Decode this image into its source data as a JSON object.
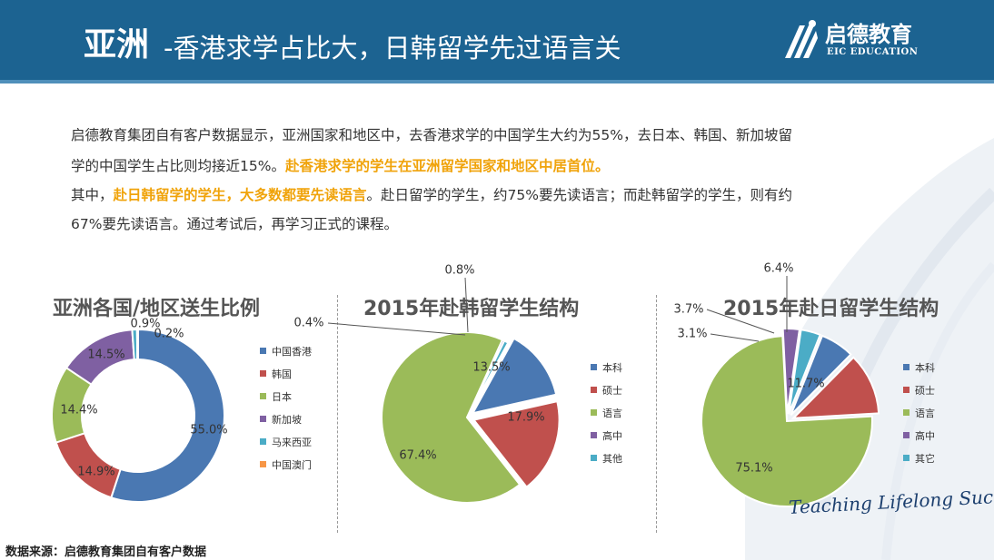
{
  "header": {
    "title_main": "亚洲",
    "title_sub": "-香港求学占比大，日韩留学先过语言关",
    "logo_cn": "启德教育",
    "logo_en": "EIC EDUCATION"
  },
  "intro": {
    "line1": "启德教育集团自有客户数据显示，亚洲国家和地区中，去香港求学的中国学生大约为55%，去日本、韩国、新加坡留",
    "line2_plain": "学的中国学生占比则均接近15%。",
    "line2_highlight": "赴香港求学的学生在亚洲留学国家和地区中居首位。",
    "line3_plain_a": "其中，",
    "line3_highlight": "赴日韩留学的学生，大多数都要先读语言",
    "line3_plain_b": "。赴日留学的学生，约75%要先读语言；而赴韩留学的学生，则有约",
    "line4": "67%要先读语言。通过考试后，再学习正式的课程。"
  },
  "chart_data": [
    {
      "type": "pie",
      "style": "donut",
      "title": "亚洲各国/地区送生比例",
      "categories": [
        "中国香港",
        "韩国",
        "日本",
        "新加坡",
        "马来西亚",
        "中国澳门"
      ],
      "values": [
        55.0,
        14.9,
        14.4,
        14.5,
        0.9,
        0.2
      ],
      "labels": [
        "55.0%",
        "14.9%",
        "14.4%",
        "14.5%",
        "0.9%",
        "0.2%"
      ],
      "colors": [
        "#4a78b2",
        "#c0504d",
        "#9bbb59",
        "#7f60a2",
        "#4bacc6",
        "#f79646"
      ],
      "legend": "right"
    },
    {
      "type": "pie",
      "title": "2015年赴韩留学生结构",
      "categories": [
        "本科",
        "硕士",
        "语言",
        "高中",
        "其他"
      ],
      "values": [
        13.5,
        17.9,
        67.4,
        0.4,
        0.8
      ],
      "labels": [
        "13.5%",
        "17.9%",
        "67.4%",
        "0.4%",
        "0.8%"
      ],
      "colors": [
        "#4a78b2",
        "#c0504d",
        "#9bbb59",
        "#7f60a2",
        "#4bacc6"
      ],
      "legend": "right"
    },
    {
      "type": "pie",
      "title": "2015年赴日留学生结构",
      "categories": [
        "本科",
        "硕士",
        "语言",
        "高中",
        "其它"
      ],
      "values": [
        6.4,
        11.7,
        75.1,
        3.1,
        3.7
      ],
      "labels": [
        "6.4%",
        "11.7%",
        "75.1%",
        "3.1%",
        "3.7%"
      ],
      "colors": [
        "#4a78b2",
        "#c0504d",
        "#9bbb59",
        "#7f60a2",
        "#4bacc6"
      ],
      "legend": "right"
    }
  ],
  "source": "数据来源：启德教育集团自有客户数据",
  "tagline": "Teaching Lifelong Success"
}
